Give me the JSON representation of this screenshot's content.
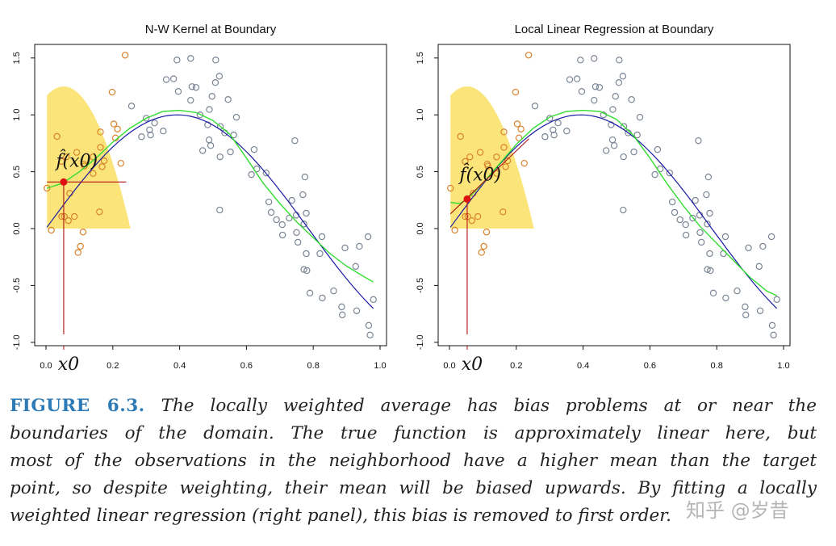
{
  "chart_data": [
    {
      "type": "scatter",
      "title": "N-W Kernel at Boundary",
      "xlim": [
        0,
        1
      ],
      "ylim": [
        -1,
        1.5
      ],
      "xticks": [
        "0.0",
        "0.2",
        "0.4",
        "0.6",
        "0.8",
        "1.0"
      ],
      "yticks": [
        "-1.0",
        "-0.5",
        "0.0",
        "0.5",
        "1.0",
        "1.5"
      ],
      "target_label": "x0",
      "fit_label": "f̂(x0)",
      "target_x": 0.053,
      "fit_value": 0.41,
      "local_fit_line": {
        "type": "horizontal",
        "x": [
          0.003,
          0.24
        ],
        "y": [
          0.41,
          0.41
        ]
      },
      "fit_curve": {
        "x": [
          0.003,
          0.05,
          0.1,
          0.15,
          0.2,
          0.25,
          0.3,
          0.35,
          0.4,
          0.45,
          0.5,
          0.55,
          0.6,
          0.65,
          0.7,
          0.75,
          0.8,
          0.85,
          0.9,
          0.95,
          0.98
        ],
        "y": [
          0.355,
          0.4,
          0.5,
          0.62,
          0.76,
          0.88,
          0.97,
          1.03,
          1.04,
          1.02,
          0.95,
          0.83,
          0.62,
          0.4,
          0.22,
          0.06,
          -0.08,
          -0.22,
          -0.33,
          -0.42,
          -0.47
        ]
      }
    },
    {
      "type": "scatter",
      "title": "Local Linear Regression at Boundary",
      "xlim": [
        0,
        1
      ],
      "ylim": [
        -1,
        1.5
      ],
      "xticks": [
        "0.0",
        "0.2",
        "0.4",
        "0.6",
        "0.8",
        "1.0"
      ],
      "yticks": [
        "-1.0",
        "-0.5",
        "0.0",
        "0.5",
        "1.0",
        "1.5"
      ],
      "target_label": "x0",
      "fit_label": "f̂(x0)",
      "target_x": 0.053,
      "fit_value": 0.26,
      "local_fit_line": {
        "type": "sloped",
        "x": [
          0.003,
          0.238
        ],
        "y": [
          0.13,
          0.79
        ]
      },
      "fit_curve": {
        "x": [
          0.003,
          0.03,
          0.05,
          0.1,
          0.15,
          0.2,
          0.25,
          0.3,
          0.35,
          0.4,
          0.45,
          0.5,
          0.55,
          0.6,
          0.65,
          0.7,
          0.75,
          0.8,
          0.85,
          0.9,
          0.95,
          0.98
        ],
        "y": [
          0.23,
          0.22,
          0.25,
          0.4,
          0.57,
          0.74,
          0.88,
          0.98,
          1.03,
          1.04,
          1.03,
          0.96,
          0.82,
          0.62,
          0.4,
          0.2,
          0.02,
          -0.13,
          -0.28,
          -0.43,
          -0.55,
          -0.59
        ]
      }
    }
  ],
  "shared": {
    "true_function": "sin(4x)",
    "kernel": {
      "center": 0.053,
      "lambda": 0.2,
      "peak": 1.25
    },
    "points": [
      [
        0.003,
        0.355
      ],
      [
        0.016,
        -0.014
      ],
      [
        0.033,
        0.81
      ],
      [
        0.047,
        0.106
      ],
      [
        0.055,
        0.106
      ],
      [
        0.067,
        0.07
      ],
      [
        0.071,
        0.31
      ],
      [
        0.085,
        0.106
      ],
      [
        0.047,
        0.59
      ],
      [
        0.061,
        0.63
      ],
      [
        0.092,
        0.67
      ],
      [
        0.111,
        -0.03
      ],
      [
        0.103,
        -0.156
      ],
      [
        0.096,
        -0.21
      ],
      [
        0.113,
        0.567
      ],
      [
        0.115,
        0.55
      ],
      [
        0.141,
        0.63
      ],
      [
        0.141,
        0.485
      ],
      [
        0.16,
        0.147
      ],
      [
        0.163,
        0.714
      ],
      [
        0.163,
        0.85
      ],
      [
        0.168,
        0.544
      ],
      [
        0.174,
        0.596
      ],
      [
        0.198,
        1.2
      ],
      [
        0.203,
        0.92
      ],
      [
        0.214,
        0.875
      ],
      [
        0.208,
        0.797
      ],
      [
        0.224,
        0.574
      ],
      [
        0.237,
        1.525
      ],
      [
        0.256,
        1.078
      ],
      [
        0.286,
        0.808
      ],
      [
        0.3,
        0.97
      ],
      [
        0.31,
        0.868
      ],
      [
        0.313,
        0.823
      ],
      [
        0.325,
        0.929
      ],
      [
        0.351,
        0.858
      ],
      [
        0.36,
        1.31
      ],
      [
        0.382,
        1.317
      ],
      [
        0.392,
        1.482
      ],
      [
        0.396,
        1.206
      ],
      [
        0.433,
        1.496
      ],
      [
        0.433,
        1.128
      ],
      [
        0.437,
        1.248
      ],
      [
        0.449,
        1.241
      ],
      [
        0.461,
        1.0
      ],
      [
        0.469,
        0.686
      ],
      [
        0.484,
        0.913
      ],
      [
        0.488,
        0.78
      ],
      [
        0.489,
        1.047
      ],
      [
        0.493,
        0.73
      ],
      [
        0.497,
        1.163
      ],
      [
        0.507,
        1.284
      ],
      [
        0.508,
        1.482
      ],
      [
        0.519,
        1.34
      ],
      [
        0.521,
        0.631
      ],
      [
        0.52,
        0.163
      ],
      [
        0.522,
        0.898
      ],
      [
        0.535,
        0.842
      ],
      [
        0.545,
        1.135
      ],
      [
        0.552,
        0.674
      ],
      [
        0.562,
        0.823
      ],
      [
        0.57,
        0.979
      ],
      [
        0.615,
        0.475
      ],
      [
        0.623,
        0.695
      ],
      [
        0.631,
        0.525
      ],
      [
        0.659,
        0.489
      ],
      [
        0.667,
        0.234
      ],
      [
        0.674,
        0.142
      ],
      [
        0.69,
        0.078
      ],
      [
        0.707,
        0.035
      ],
      [
        0.708,
        -0.057
      ],
      [
        0.728,
        0.092
      ],
      [
        0.736,
        0.248
      ],
      [
        0.745,
        0.773
      ],
      [
        0.749,
        0.118
      ],
      [
        0.75,
        -0.035
      ],
      [
        0.754,
        -0.12
      ],
      [
        0.769,
        0.298
      ],
      [
        0.772,
        0.04
      ],
      [
        0.775,
        0.454
      ],
      [
        0.779,
        0.135
      ],
      [
        0.779,
        -0.22
      ],
      [
        0.772,
        -0.36
      ],
      [
        0.781,
        -0.369
      ],
      [
        0.79,
        -0.567
      ],
      [
        0.82,
        -0.22
      ],
      [
        0.826,
        -0.071
      ],
      [
        0.827,
        -0.61
      ],
      [
        0.861,
        -0.548
      ],
      [
        0.885,
        -0.688
      ],
      [
        0.887,
        -0.759
      ],
      [
        0.895,
        -0.17
      ],
      [
        0.927,
        -0.333
      ],
      [
        0.93,
        -0.723
      ],
      [
        0.938,
        -0.156
      ],
      [
        0.964,
        -0.071
      ],
      [
        0.966,
        -0.851
      ],
      [
        0.97,
        -0.936
      ],
      [
        0.98,
        -0.624
      ]
    ],
    "colors": {
      "in_window": "#d9822b",
      "outside": "#7a8595",
      "true_curve": "#1a1aa6",
      "fit_curve": "#33dd33",
      "target": "#e01010",
      "kernel_fill": "#fbe57a",
      "line": "#b01010"
    }
  },
  "caption": {
    "label": "FIGURE 6.3.",
    "lines": [
      " The locally weighted average has bias problems at or near the",
      "boundaries of the domain. The true function is approximately linear here, but",
      "most of the observations in the neighborhood have a higher mean than the target",
      "point, so despite weighting, their mean will be biased upwards. By fitting a locally",
      "weighted linear regression (right panel), this bias is removed to first order."
    ]
  },
  "watermark": "知乎 @岁昔"
}
